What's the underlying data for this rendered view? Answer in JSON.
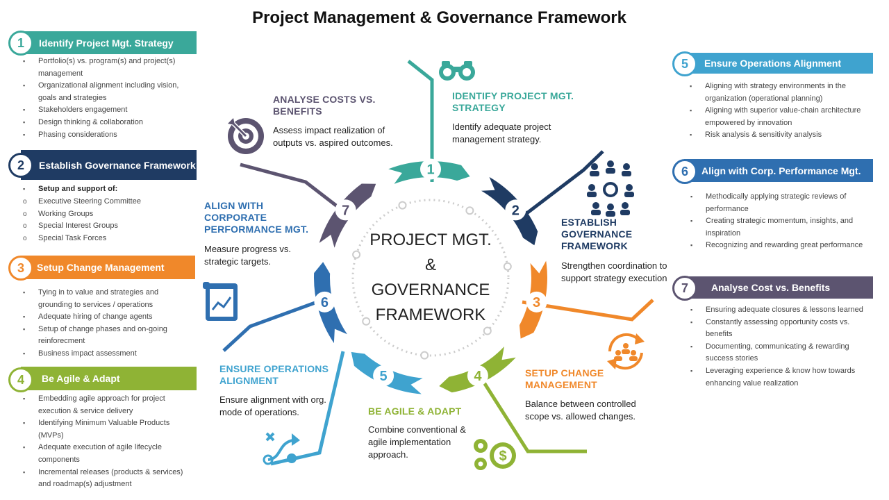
{
  "title": "Project Management & Governance Framework",
  "center_text": [
    "PROJECT MGT.",
    "&",
    "GOVERNANCE",
    "FRAMEWORK"
  ],
  "colors": {
    "c1": "#3aa89a",
    "c2": "#1f3b63",
    "c3": "#f0882a",
    "c4": "#8fb335",
    "c5": "#3fa3cf",
    "c6": "#2f6fb0",
    "c7": "#5c5470"
  },
  "left_panels": [
    {
      "num": "1",
      "title": "Identify Project Mgt. Strategy",
      "items": [
        "Portfolio(s) vs. program(s) and project(s) management",
        "Organizational alignment including vision, goals and strategies",
        "Stakeholders engagement",
        "Design thinking & collaboration",
        "Phasing considerations"
      ]
    },
    {
      "num": "2",
      "title": "Establish Governance Framework",
      "head": "Setup and support of:",
      "items": [
        "Executive Steering Committee",
        "Working Groups",
        "Special Interest Groups",
        "Special Task Forces"
      ]
    },
    {
      "num": "3",
      "title": "Setup Change Management",
      "items": [
        "Tying in to value and strategies and grounding to services / operations",
        "Adequate hiring of change agents",
        "Setup of change phases and on-going reinforecment",
        "Business impact assessment"
      ]
    },
    {
      "num": "4",
      "title": "Be Agile & Adapt",
      "items": [
        "Embedding agile approach for project execution & service delivery",
        "Identifying Minimum Valuable Products (MVPs)",
        "Adequate execution of agile lifecycle components",
        "Incremental releases (products & services) and roadmap(s) adjustment"
      ]
    }
  ],
  "right_panels": [
    {
      "num": "5",
      "title": "Ensure Operations Alignment",
      "items": [
        "Aligning with strategy environments in the organization (operational planning)",
        "Aligning with superior value-chain architecture empowered by innovation",
        "Risk analysis & sensitivity analysis"
      ]
    },
    {
      "num": "6",
      "title": "Align with Corp. Performance Mgt.",
      "items": [
        "Methodically applying strategic reviews of performance",
        "Creating strategic momentum, insights, and inspiration",
        "Recognizing and rewarding great performance"
      ]
    },
    {
      "num": "7",
      "title": "Analyse Cost vs. Benefits",
      "items": [
        "Ensuring adequate closures & lessons learned",
        "Constantly assessing opportunity costs vs. benefits",
        "Documenting, communicating & rewarding success stories",
        "Leveraging experience & know how towards enhancing value realization"
      ]
    }
  ],
  "steps": [
    {
      "num": "1",
      "heading": "IDENTIFY PROJECT MGT. STRATEGY",
      "text": "Identify adequate project management strategy.",
      "icon": "binoculars-icon"
    },
    {
      "num": "2",
      "heading": "ESTABLISH GOVERNANCE FRAMEWORK",
      "text": "Strengthen coordination to support strategy execution",
      "icon": "network-people-icon"
    },
    {
      "num": "3",
      "heading": "SETUP CHANGE MANAGEMENT",
      "text": "Balance between controlled scope vs. allowed changes.",
      "icon": "change-cycle-icon"
    },
    {
      "num": "4",
      "heading": "BE AGILE & ADAPT",
      "text": "Combine conventional & agile implementation approach.",
      "icon": "gears-dollar-icon"
    },
    {
      "num": "5",
      "heading": "ENSURE OPERATIONS ALIGNMENT",
      "text": "Ensure alignment with org. mode of operations.",
      "icon": "strategy-path-icon"
    },
    {
      "num": "6",
      "heading": "ALIGN WITH CORPORATE PERFORMANCE MGT.",
      "text": "Measure progress vs. strategic targets.",
      "icon": "report-chart-icon"
    },
    {
      "num": "7",
      "heading": "ANALYSE COSTS VS. BENEFITS",
      "text": "Assess impact realization of outputs vs. aspired outcomes.",
      "icon": "target-icon"
    }
  ]
}
